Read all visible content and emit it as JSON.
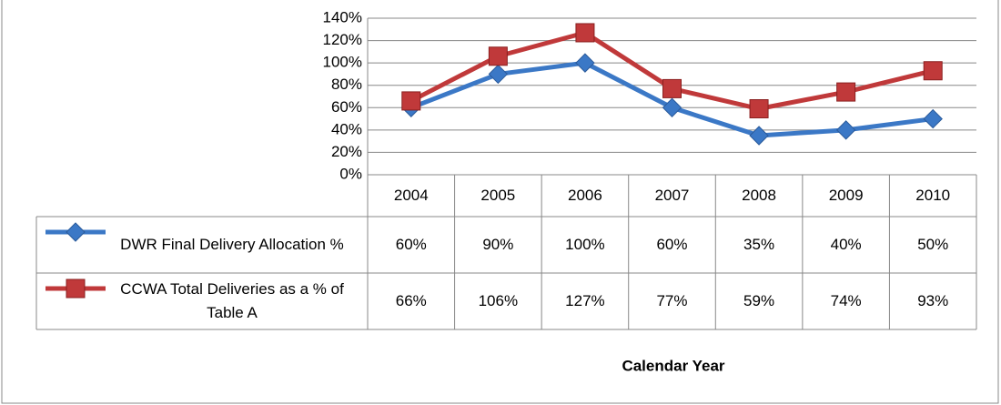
{
  "chart_data": {
    "type": "line",
    "categories": [
      "2004",
      "2005",
      "2006",
      "2007",
      "2008",
      "2009",
      "2010"
    ],
    "series": [
      {
        "name": "DWR Final Delivery Allocation %",
        "color": "#3b78c6",
        "marker": "diamond",
        "values": [
          60,
          90,
          100,
          60,
          35,
          40,
          50
        ],
        "value_labels": [
          "60%",
          "90%",
          "100%",
          "60%",
          "35%",
          "40%",
          "50%"
        ]
      },
      {
        "name": "CCWA Total Deliveries as a % of Table A",
        "color": "#c0393a",
        "marker": "square",
        "values": [
          66,
          106,
          127,
          77,
          59,
          74,
          93
        ],
        "value_labels": [
          "66%",
          "106%",
          "127%",
          "77%",
          "59%",
          "74%",
          "93%"
        ]
      }
    ],
    "xlabel": "Calendar Year",
    "ylim": [
      0,
      140
    ],
    "yticks": [
      {
        "value": 0,
        "label": "0%"
      },
      {
        "value": 20,
        "label": "20%"
      },
      {
        "value": 40,
        "label": "40%"
      },
      {
        "value": 60,
        "label": "60%"
      },
      {
        "value": 80,
        "label": "80%"
      },
      {
        "value": 100,
        "label": "100%"
      },
      {
        "value": 120,
        "label": "120%"
      },
      {
        "value": 140,
        "label": "140%"
      }
    ],
    "grid": true
  }
}
